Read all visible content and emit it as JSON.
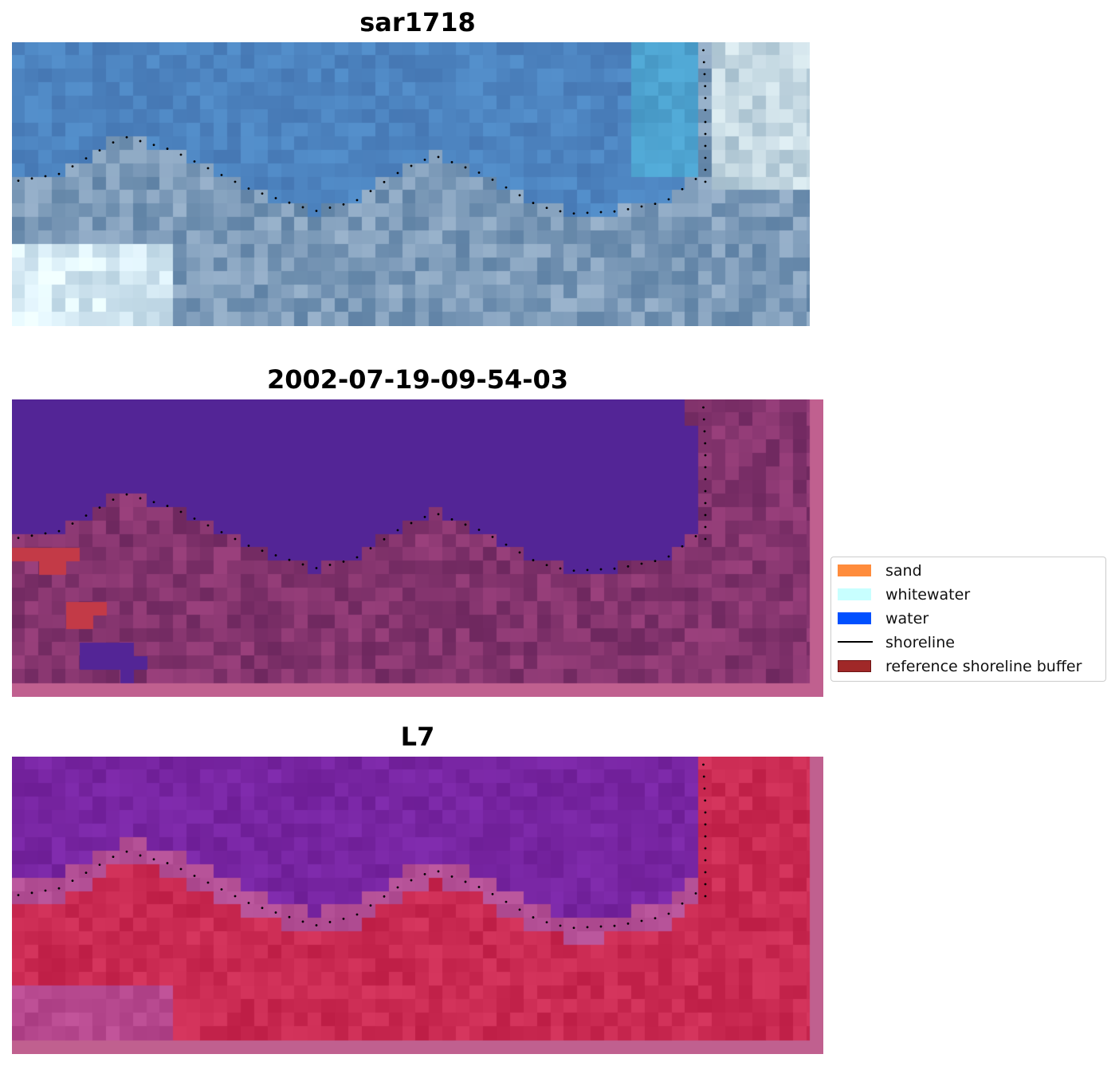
{
  "panels": [
    {
      "title": "sar1718",
      "kind": "rgb"
    },
    {
      "title": "2002-07-19-09-54-03",
      "kind": "classified"
    },
    {
      "title": "L7",
      "kind": "mndwi"
    }
  ],
  "legend": {
    "items": [
      {
        "label": "sand",
        "color": "#ff8c3c",
        "type": "patch"
      },
      {
        "label": "whitewater",
        "color": "#c8ffff",
        "type": "patch"
      },
      {
        "label": "water",
        "color": "#0050ff",
        "type": "patch"
      },
      {
        "label": "shoreline",
        "color": "#000000",
        "type": "line"
      },
      {
        "label": "reference shoreline buffer",
        "color": "#a02828",
        "type": "patch",
        "edge": "#6e1414"
      }
    ]
  },
  "colors": {
    "water_class": "#532596",
    "buffer_pink": "#c0608f",
    "buffer_red": "#c33a47",
    "shoreline_dots": "#000000"
  }
}
